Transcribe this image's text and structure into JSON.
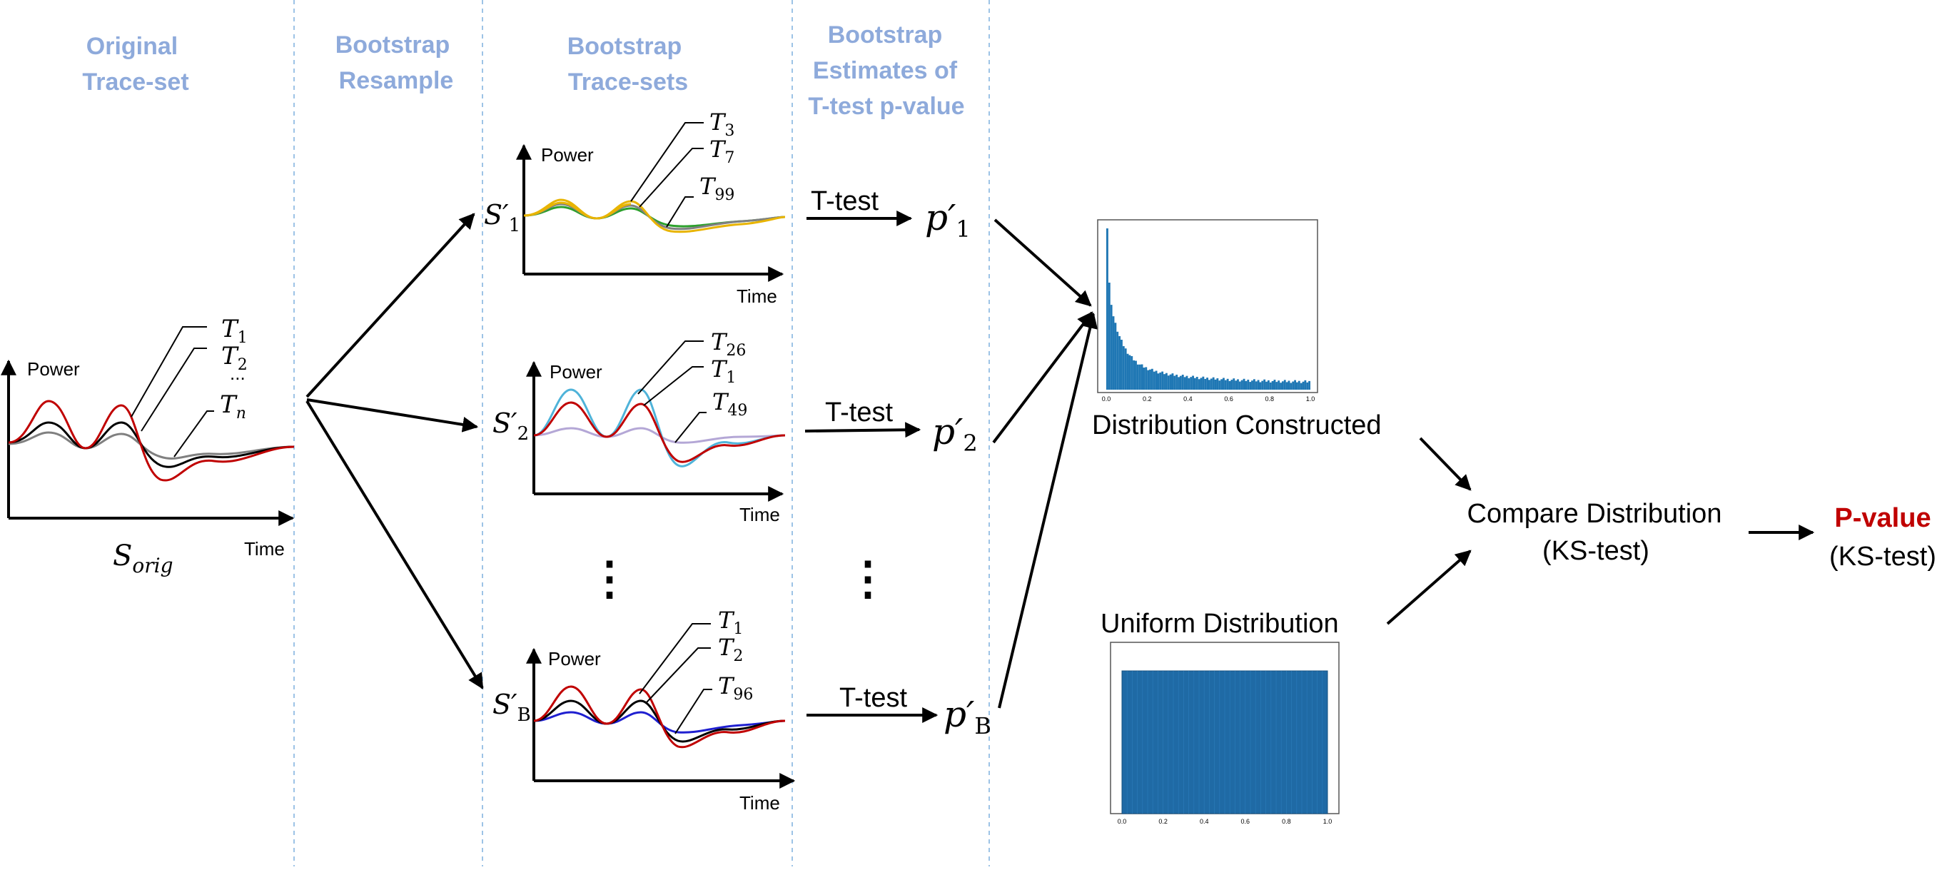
{
  "colors": {
    "header": "#8eaadb",
    "divider": "#9dc3e6",
    "hist": "#1f77b4",
    "red_trace": "#c00000",
    "black_trace": "#000000",
    "gray_trace": "#808080",
    "yellow_trace": "#e8b400",
    "green_trace": "#2ca02c",
    "cyan_trace": "#4fb3d9",
    "lavender_trace": "#b4a7d6",
    "blue_trace": "#1f1fd0",
    "pvalue_red": "#c00000"
  },
  "headers": {
    "original": [
      "Original",
      "Trace-set"
    ],
    "resample": [
      "Bootstrap",
      "Resample"
    ],
    "tracesets": [
      "Bootstrap",
      "Trace-sets"
    ],
    "estimates": [
      "Bootstrap",
      "Estimates of",
      "T-test p-value"
    ]
  },
  "original": {
    "power": "Power",
    "time": "Time",
    "set_label": "S",
    "set_sub": "orig",
    "traces": [
      {
        "t": "T",
        "sub": "1"
      },
      {
        "t": "T",
        "sub": "2"
      },
      {
        "t": "T",
        "sub": "n"
      }
    ],
    "dots": "..."
  },
  "sets": [
    {
      "name": "S′",
      "sub": "1",
      "power": "Power",
      "time": "Time",
      "traces": [
        {
          "t": "T",
          "sub": "3"
        },
        {
          "t": "T",
          "sub": "7"
        },
        {
          "t": "T",
          "sub": "99"
        }
      ],
      "ttest": "T-test",
      "p": "p′",
      "psub": "1"
    },
    {
      "name": "S′",
      "sub": "2",
      "power": "Power",
      "time": "Time",
      "traces": [
        {
          "t": "T",
          "sub": "26"
        },
        {
          "t": "T",
          "sub": "1"
        },
        {
          "t": "T",
          "sub": "49"
        }
      ],
      "ttest": "T-test",
      "p": "p′",
      "psub": "2"
    },
    {
      "name": "S′",
      "sub": "B",
      "power": "Power",
      "time": "Time",
      "traces": [
        {
          "t": "T",
          "sub": "1"
        },
        {
          "t": "T",
          "sub": "2"
        },
        {
          "t": "T",
          "sub": "96"
        }
      ],
      "ttest": "T-test",
      "p": "p′",
      "psub": "B"
    }
  ],
  "vdots": "⋮",
  "dist_constructed": {
    "label": "Distribution Constructed",
    "xticks": [
      "0.0",
      "0.2",
      "0.4",
      "0.6",
      "0.8",
      "1.0"
    ]
  },
  "uniform": {
    "label": "Uniform Distribution",
    "xticks": [
      "0.0",
      "0.2",
      "0.4",
      "0.6",
      "0.8",
      "1.0"
    ]
  },
  "compare": [
    "Compare Distribution",
    "(KS-test)"
  ],
  "result": [
    "P-value",
    "(KS-test)"
  ]
}
